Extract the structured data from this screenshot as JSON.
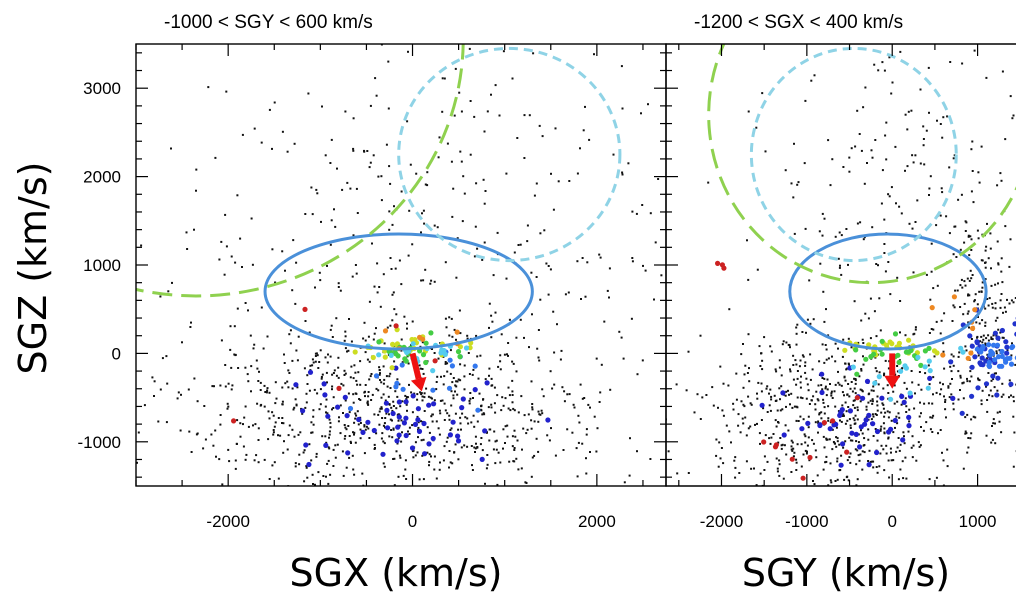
{
  "chart_data": [
    {
      "type": "scatter",
      "title": "-1000 < SGY < 600 km/s",
      "xlabel": "SGX (km/s)",
      "ylabel": "SGZ (km/s)",
      "xlim": [
        -3000,
        2750
      ],
      "ylim": [
        -1500,
        3500
      ],
      "xticks": [
        -2000,
        0,
        2000
      ],
      "xtick_labels": [
        "-2000",
        "0",
        "2000"
      ],
      "yticks": [
        -1000,
        0,
        1000,
        2000,
        3000
      ],
      "ytick_labels": [
        "-1000",
        "0",
        "1000",
        "2000",
        "3000"
      ],
      "grid": false,
      "overlays": [
        {
          "kind": "ellipse",
          "style": "solid",
          "color": "#4a90d9",
          "cx": -150,
          "cy": 700,
          "rx": 1450,
          "ry": 650
        },
        {
          "kind": "circle",
          "style": "dashed",
          "color": "#8fd3e6",
          "cx": 1050,
          "cy": 2250,
          "r": 1200
        },
        {
          "kind": "circle",
          "style": "long-dashed",
          "color": "#8fd14f",
          "cx": -2350,
          "cy": 3550,
          "r": 2900
        }
      ],
      "arrow": {
        "color": "#ee1111",
        "from": [
          0,
          0
        ],
        "to": [
          100,
          -430
        ]
      },
      "clusters": [
        {
          "color": "#111111",
          "x": -200,
          "y": -600,
          "sx": 1200,
          "sy": 500,
          "n": 900
        },
        {
          "color": "#111111",
          "x": 300,
          "y": 1500,
          "sx": 1500,
          "sy": 1200,
          "n": 350
        },
        {
          "color": "#2222cc",
          "x": -100,
          "y": -750,
          "sx": 600,
          "sy": 250,
          "n": 55
        },
        {
          "color": "#3377ee",
          "x": 100,
          "y": -300,
          "sx": 400,
          "sy": 200,
          "n": 15
        },
        {
          "color": "#ccdd22",
          "x": -50,
          "y": 50,
          "sx": 350,
          "sy": 70,
          "n": 25
        },
        {
          "color": "#44cc44",
          "x": 0,
          "y": 0,
          "sx": 300,
          "sy": 70,
          "n": 20
        },
        {
          "color": "#55ccee",
          "x": 50,
          "y": 20,
          "sx": 300,
          "sy": 70,
          "n": 20
        },
        {
          "color": "#ee8822",
          "x": 300,
          "y": 100,
          "sx": 300,
          "sy": 150,
          "n": 6
        },
        {
          "color": "#cc2222",
          "x": -200,
          "y": -200,
          "sx": 900,
          "sy": 400,
          "n": 5
        }
      ]
    },
    {
      "type": "scatter",
      "title": "-1200 < SGX < 400 km/s",
      "xlabel": "SGY (km/s)",
      "ylabel": "",
      "xlim": [
        -2650,
        1450
      ],
      "ylim": [
        -1500,
        3500
      ],
      "xticks": [
        -2000,
        -1000,
        0,
        1000
      ],
      "xtick_labels": [
        "-2000",
        "-1000",
        "0",
        "1000"
      ],
      "grid": false,
      "overlays": [
        {
          "kind": "ellipse",
          "style": "solid",
          "color": "#4a90d9",
          "cx": -50,
          "cy": 700,
          "rx": 1150,
          "ry": 650
        },
        {
          "kind": "circle",
          "style": "dashed",
          "color": "#8fd3e6",
          "cx": -450,
          "cy": 2250,
          "r": 1200
        },
        {
          "kind": "circle",
          "style": "long-dashed",
          "color": "#8fd14f",
          "cx": -250,
          "cy": 2700,
          "r": 1900
        }
      ],
      "arrow": {
        "color": "#ee1111",
        "from": [
          0,
          0
        ],
        "to": [
          0,
          -400
        ]
      },
      "clusters": [
        {
          "color": "#111111",
          "x": -700,
          "y": -700,
          "sx": 800,
          "sy": 500,
          "n": 700
        },
        {
          "color": "#111111",
          "x": 1100,
          "y": 200,
          "sx": 250,
          "sy": 600,
          "n": 250
        },
        {
          "color": "#111111",
          "x": 200,
          "y": 1900,
          "sx": 900,
          "sy": 1200,
          "n": 260
        },
        {
          "color": "#2222cc",
          "x": -500,
          "y": -700,
          "sx": 500,
          "sy": 250,
          "n": 45
        },
        {
          "color": "#2233cc",
          "x": 1100,
          "y": 0,
          "sx": 200,
          "sy": 350,
          "n": 40
        },
        {
          "color": "#3377ee",
          "x": 1250,
          "y": 0,
          "sx": 120,
          "sy": 80,
          "n": 30
        },
        {
          "color": "#ccdd22",
          "x": -100,
          "y": 50,
          "sx": 300,
          "sy": 70,
          "n": 25
        },
        {
          "color": "#44cc44",
          "x": 0,
          "y": 0,
          "sx": 250,
          "sy": 80,
          "n": 20
        },
        {
          "color": "#55ccee",
          "x": 200,
          "y": -200,
          "sx": 500,
          "sy": 200,
          "n": 15
        },
        {
          "color": "#ee8822",
          "x": 700,
          "y": 300,
          "sx": 300,
          "sy": 200,
          "n": 8
        },
        {
          "color": "#cc2222",
          "x": -1100,
          "y": -900,
          "sx": 300,
          "sy": 200,
          "n": 10
        },
        {
          "color": "#cc2222",
          "x": -2000,
          "y": 1000,
          "sx": 120,
          "sy": 80,
          "n": 3
        }
      ]
    }
  ]
}
